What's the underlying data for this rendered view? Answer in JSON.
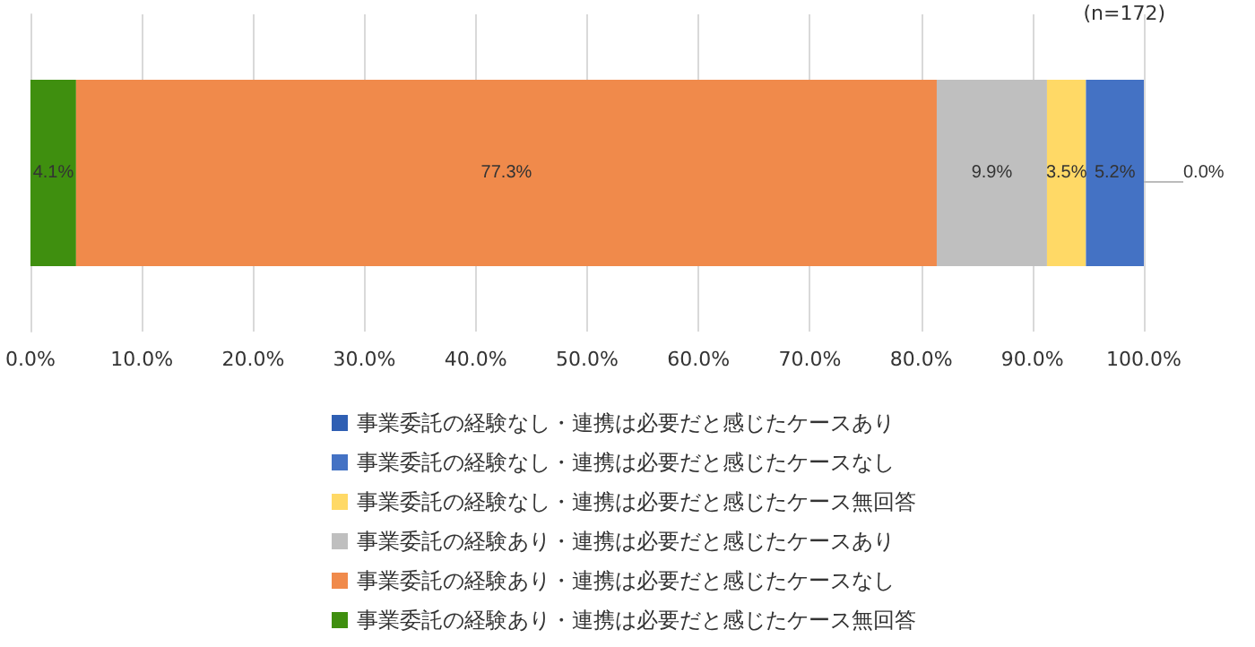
{
  "chart_data": {
    "type": "bar",
    "orientation": "horizontal",
    "stacked": true,
    "categories": [
      null
    ],
    "series": [
      {
        "name": "事業委託の経験あり・連携は必要だと感じたケース無回答",
        "color": "#3f8f0f",
        "values": [
          4.1
        ],
        "value_labels": [
          "4.1%"
        ]
      },
      {
        "name": "事業委託の経験あり・連携は必要だと感じたケースなし",
        "color": "#f08a4b",
        "values": [
          77.3
        ],
        "value_labels": [
          "77.3%"
        ]
      },
      {
        "name": "事業委託の経験あり・連携は必要だと感じたケースあり",
        "color": "#bfbfbf",
        "values": [
          9.9
        ],
        "value_labels": [
          "9.9%"
        ]
      },
      {
        "name": "事業委託の経験なし・連携は必要だと感じたケース無回答",
        "color": "#ffd966",
        "values": [
          3.5
        ],
        "value_labels": [
          "3.5%"
        ]
      },
      {
        "name": "事業委託の経験なし・連携は必要だと感じたケースなし",
        "color": "#4472c4",
        "values": [
          5.2
        ],
        "value_labels": [
          "5.2%"
        ]
      },
      {
        "name": "事業委託の経験なし・連携は必要だと感じたケースあり",
        "color": "#2f5fb3",
        "values": [
          0.0
        ],
        "value_labels": [
          "0.0%"
        ]
      }
    ],
    "xlim": [
      0,
      100
    ],
    "xticks": [
      {
        "value": 0,
        "label": "0.0%"
      },
      {
        "value": 10,
        "label": "10.0%"
      },
      {
        "value": 20,
        "label": "20.0%"
      },
      {
        "value": 30,
        "label": "30.0%"
      },
      {
        "value": 40,
        "label": "40.0%"
      },
      {
        "value": 50,
        "label": "50.0%"
      },
      {
        "value": 60,
        "label": "60.0%"
      },
      {
        "value": 70,
        "label": "70.0%"
      },
      {
        "value": 80,
        "label": "80.0%"
      },
      {
        "value": 90,
        "label": "90.0%"
      },
      {
        "value": 100,
        "label": "100.0%"
      }
    ],
    "grid": "x",
    "legend": "bottom",
    "annotations": [
      "(n=172)"
    ]
  }
}
